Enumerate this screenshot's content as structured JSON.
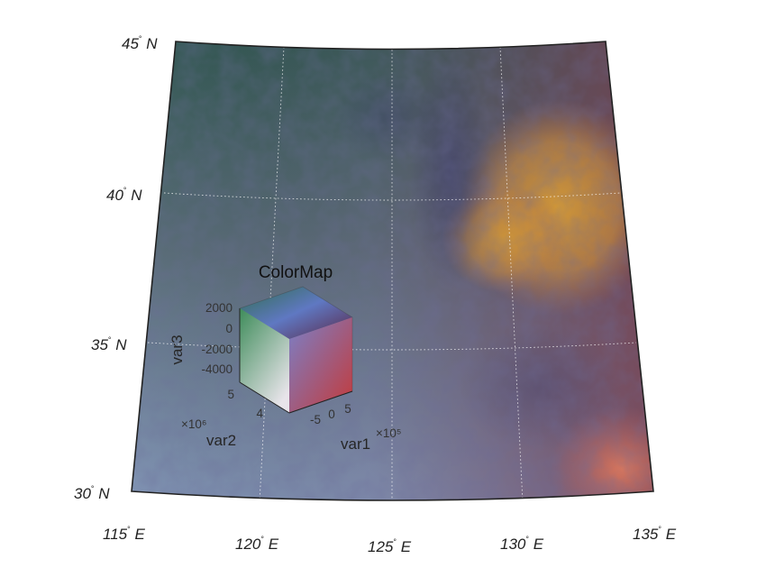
{
  "map": {
    "lat_labels": [
      {
        "value": "30",
        "dir": "N"
      },
      {
        "value": "35",
        "dir": "N"
      },
      {
        "value": "40",
        "dir": "N"
      },
      {
        "value": "45",
        "dir": "N"
      }
    ],
    "lon_labels": [
      {
        "value": "115",
        "dir": "E"
      },
      {
        "value": "120",
        "dir": "E"
      },
      {
        "value": "125",
        "dir": "E"
      },
      {
        "value": "130",
        "dir": "E"
      },
      {
        "value": "135",
        "dir": "E"
      }
    ],
    "degree_symbol": "°"
  },
  "colormap_legend": {
    "title": "ColorMap",
    "var1": {
      "label": "var1",
      "exponent": "×10⁵",
      "ticks": [
        "-5",
        "0",
        "5"
      ]
    },
    "var2": {
      "label": "var2",
      "exponent": "×10⁶",
      "ticks": [
        "4",
        "5"
      ]
    },
    "var3": {
      "label": "var3",
      "ticks": [
        "2000",
        "0",
        "-2000",
        "-4000"
      ]
    }
  }
}
